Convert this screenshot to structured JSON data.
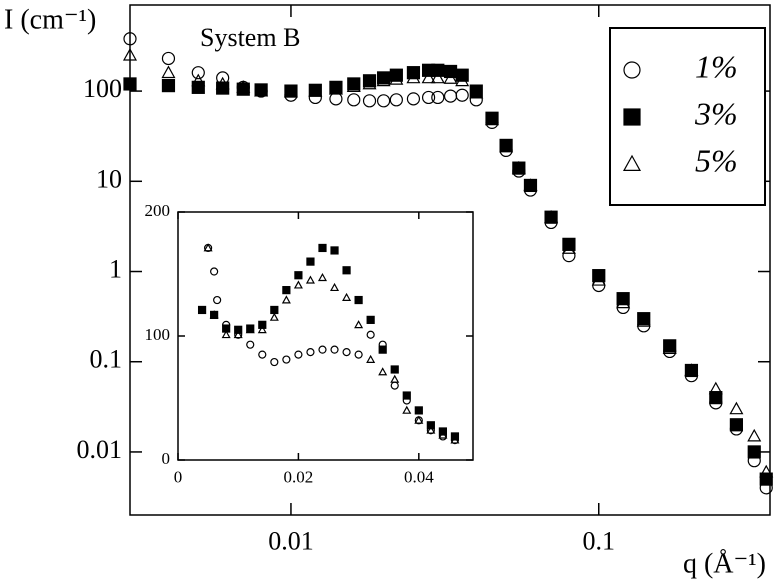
{
  "chart_data": [
    {
      "type": "scatter",
      "y_label": "I (cm⁻¹)",
      "x_label": "q (Å⁻¹)",
      "annotation": "System B",
      "xscale": "log",
      "yscale": "log",
      "xlim": [
        0.003,
        0.36
      ],
      "ylim": [
        0.002,
        900
      ],
      "xticks": [
        0.01,
        0.1
      ],
      "yticks": [
        0.01,
        0.1,
        1,
        10,
        100
      ],
      "legend": "upper right",
      "series": [
        {
          "name": "1%",
          "color": "#000000",
          "marker": "open-circle",
          "x": [
            0.003,
            0.004,
            0.005,
            0.006,
            0.007,
            0.008,
            0.01,
            0.012,
            0.014,
            0.016,
            0.018,
            0.02,
            0.022,
            0.025,
            0.028,
            0.03,
            0.033,
            0.036,
            0.04,
            0.045,
            0.05,
            0.055,
            0.06,
            0.07,
            0.08,
            0.1,
            0.12,
            0.14,
            0.17,
            0.2,
            0.24,
            0.28,
            0.32,
            0.35
          ],
          "values": [
            380,
            230,
            160,
            140,
            110,
            100,
            90,
            85,
            82,
            80,
            78,
            78,
            80,
            82,
            85,
            85,
            88,
            90,
            80,
            45,
            22,
            13,
            8,
            3.5,
            1.5,
            0.7,
            0.4,
            0.25,
            0.13,
            0.07,
            0.035,
            0.018,
            0.008,
            0.004
          ]
        },
        {
          "name": "3%",
          "color": "#000000",
          "marker": "filled-square",
          "x": [
            0.003,
            0.004,
            0.005,
            0.006,
            0.007,
            0.008,
            0.01,
            0.012,
            0.014,
            0.016,
            0.018,
            0.02,
            0.022,
            0.025,
            0.028,
            0.03,
            0.033,
            0.036,
            0.04,
            0.045,
            0.05,
            0.055,
            0.06,
            0.07,
            0.08,
            0.1,
            0.12,
            0.14,
            0.17,
            0.2,
            0.24,
            0.28,
            0.32,
            0.35
          ],
          "values": [
            120,
            115,
            110,
            108,
            105,
            103,
            100,
            102,
            110,
            120,
            130,
            140,
            150,
            160,
            170,
            170,
            165,
            150,
            100,
            50,
            25,
            14,
            9,
            4,
            2,
            0.9,
            0.5,
            0.3,
            0.15,
            0.08,
            0.04,
            0.02,
            0.01,
            0.005
          ]
        },
        {
          "name": "5%",
          "color": "#000000",
          "marker": "open-triangle",
          "x": [
            0.003,
            0.004,
            0.005,
            0.006,
            0.007,
            0.008,
            0.01,
            0.012,
            0.014,
            0.016,
            0.018,
            0.02,
            0.022,
            0.025,
            0.028,
            0.03,
            0.033,
            0.036,
            0.04,
            0.045,
            0.05,
            0.055,
            0.06,
            0.07,
            0.08,
            0.1,
            0.12,
            0.14,
            0.17,
            0.2,
            0.24,
            0.28,
            0.32,
            0.35
          ],
          "values": [
            250,
            160,
            130,
            120,
            110,
            100,
            98,
            100,
            105,
            112,
            120,
            130,
            135,
            140,
            140,
            140,
            138,
            130,
            95,
            48,
            24,
            14,
            9,
            4,
            1.8,
            0.8,
            0.45,
            0.28,
            0.14,
            0.08,
            0.05,
            0.03,
            0.015,
            0.006
          ]
        }
      ]
    },
    {
      "type": "scatter",
      "xlim": [
        0,
        0.049
      ],
      "ylim": [
        0,
        200
      ],
      "xticks": [
        0,
        0.02,
        0.04
      ],
      "yticks": [
        0,
        100,
        200
      ],
      "series": [
        {
          "color": "#000000",
          "marker": "open-circle",
          "x": [
            0.005,
            0.006,
            0.0065,
            0.008,
            0.01,
            0.012,
            0.014,
            0.016,
            0.018,
            0.02,
            0.022,
            0.024,
            0.026,
            0.028,
            0.03,
            0.032,
            0.034,
            0.036,
            0.038,
            0.04,
            0.042,
            0.044,
            0.046
          ],
          "values": [
            171,
            152,
            129,
            109,
            101,
            93,
            85,
            79,
            81,
            85,
            87,
            89,
            89,
            87,
            85,
            101,
            93,
            60,
            48,
            32,
            24,
            19,
            16
          ]
        },
        {
          "color": "#000000",
          "marker": "filled-square",
          "x": [
            0.004,
            0.006,
            0.008,
            0.01,
            0.012,
            0.014,
            0.016,
            0.018,
            0.02,
            0.022,
            0.024,
            0.026,
            0.028,
            0.03,
            0.032,
            0.034,
            0.036,
            0.038,
            0.04,
            0.042,
            0.044,
            0.046
          ],
          "values": [
            121,
            117,
            106,
            105,
            106,
            109,
            121,
            137,
            149,
            160,
            171,
            169,
            153,
            129,
            113,
            89,
            73,
            52,
            40,
            28,
            23,
            19
          ]
        },
        {
          "color": "#000000",
          "marker": "open-triangle",
          "x": [
            0.005,
            0.006,
            0.008,
            0.01,
            0.012,
            0.014,
            0.016,
            0.018,
            0.02,
            0.022,
            0.024,
            0.026,
            0.028,
            0.03,
            0.032,
            0.034,
            0.036,
            0.038,
            0.04,
            0.042,
            0.044,
            0.046
          ],
          "values": [
            171,
            117,
            101,
            101,
            105,
            105,
            115,
            129,
            141,
            145,
            147,
            139,
            131,
            109,
            81,
            71,
            65,
            40,
            32,
            24,
            20,
            16
          ]
        }
      ]
    }
  ]
}
